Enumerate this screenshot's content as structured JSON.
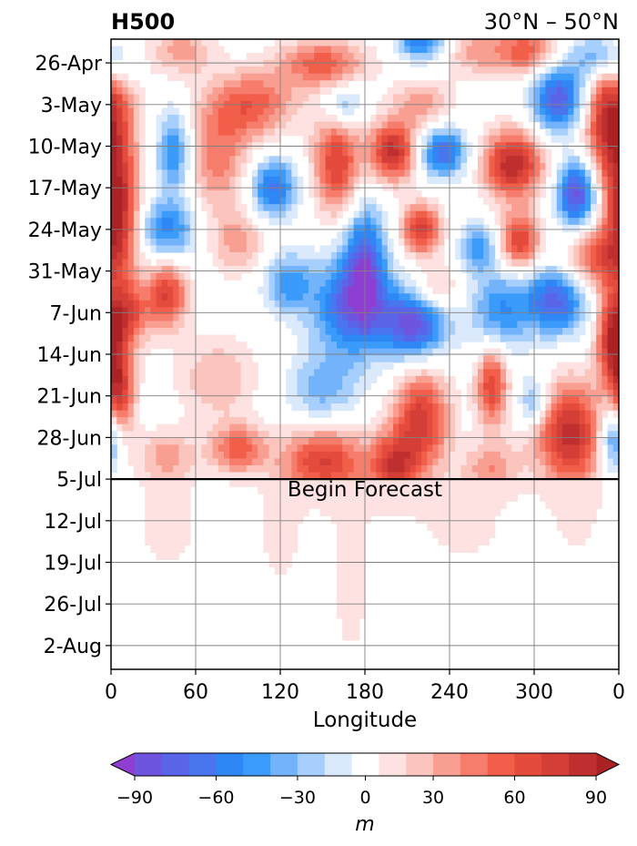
{
  "chart_data": {
    "type": "heatmap",
    "title_left": "H500",
    "title_right": "30°N – 50°N",
    "xlabel": "Longitude",
    "ylabel": "",
    "x_ticks": [
      "0",
      "60",
      "120",
      "180",
      "240",
      "300",
      "0"
    ],
    "x_range": [
      0,
      360
    ],
    "y_ticks": [
      "26-Apr",
      "3-May",
      "10-May",
      "17-May",
      "24-May",
      "31-May",
      "7-Jun",
      "14-Jun",
      "21-Jun",
      "28-Jun",
      "5-Jul",
      "12-Jul",
      "19-Jul",
      "26-Jul",
      "2-Aug"
    ],
    "y_range": [
      "2023-04-22",
      "2023-08-06"
    ],
    "grid": true,
    "forecast_start": "5-Jul",
    "forecast_label": "Begin Forecast",
    "colorbar": {
      "label": "m",
      "ticks": [
        "−90",
        "−60",
        "−30",
        "0",
        "30",
        "60",
        "90"
      ],
      "tick_values": [
        -90,
        -60,
        -30,
        0,
        30,
        60,
        90
      ],
      "levels": [
        -100,
        -90,
        -80,
        -70,
        -60,
        -50,
        -40,
        -30,
        -20,
        -10,
        10,
        20,
        30,
        40,
        50,
        60,
        70,
        80,
        90,
        100
      ],
      "extend": "both",
      "colors": [
        "#8e3fd1",
        "#6f55de",
        "#5a64e8",
        "#4976ef",
        "#2f87f5",
        "#3a9bfb",
        "#72b3fc",
        "#a6cffd",
        "#dbe9fd",
        "#ffffff",
        "#fde2e1",
        "#fbc4bc",
        "#f99f92",
        "#f67d6c",
        "#f15e49",
        "#e54b3c",
        "#d33e36",
        "#c02f2f",
        "#ab2224"
      ]
    },
    "anomaly_blobs": [
      {
        "lon": 5,
        "date": "2023-04-26",
        "v": -35,
        "sx": 10,
        "sy": 3
      },
      {
        "lon": 50,
        "date": "2023-04-24",
        "v": 35,
        "sx": 16,
        "sy": 3
      },
      {
        "lon": 100,
        "date": "2023-05-03",
        "v": 55,
        "sx": 22,
        "sy": 4
      },
      {
        "lon": 150,
        "date": "2023-04-26",
        "v": 55,
        "sx": 22,
        "sy": 3
      },
      {
        "lon": 220,
        "date": "2023-04-22",
        "v": -60,
        "sx": 12,
        "sy": 2.5
      },
      {
        "lon": 220,
        "date": "2023-05-03",
        "v": 35,
        "sx": 16,
        "sy": 3
      },
      {
        "lon": 165,
        "date": "2023-05-03",
        "v": -40,
        "sx": 10,
        "sy": 2.5
      },
      {
        "lon": 260,
        "date": "2023-04-24",
        "v": 35,
        "sx": 16,
        "sy": 3
      },
      {
        "lon": 295,
        "date": "2023-04-24",
        "v": 55,
        "sx": 14,
        "sy": 3
      },
      {
        "lon": 345,
        "date": "2023-04-25",
        "v": -55,
        "sx": 12,
        "sy": 3
      },
      {
        "lon": 318,
        "date": "2023-05-02",
        "v": -80,
        "sx": 14,
        "sy": 4
      },
      {
        "lon": 355,
        "date": "2023-05-05",
        "v": 95,
        "sx": 14,
        "sy": 8
      },
      {
        "lon": 5,
        "date": "2023-05-21",
        "v": 85,
        "sx": 10,
        "sy": 7
      },
      {
        "lon": 45,
        "date": "2023-05-11",
        "v": -55,
        "sx": 9,
        "sy": 5
      },
      {
        "lon": 75,
        "date": "2023-05-12",
        "v": 45,
        "sx": 16,
        "sy": 6
      },
      {
        "lon": 115,
        "date": "2023-05-17",
        "v": -65,
        "sx": 12,
        "sy": 3.5
      },
      {
        "lon": 160,
        "date": "2023-05-13",
        "v": 70,
        "sx": 12,
        "sy": 6
      },
      {
        "lon": 200,
        "date": "2023-05-11",
        "v": 85,
        "sx": 12,
        "sy": 3.5
      },
      {
        "lon": 235,
        "date": "2023-05-11",
        "v": -70,
        "sx": 12,
        "sy": 3
      },
      {
        "lon": 285,
        "date": "2023-05-13",
        "v": 90,
        "sx": 15,
        "sy": 4
      },
      {
        "lon": 330,
        "date": "2023-05-18",
        "v": -90,
        "sx": 10,
        "sy": 4
      },
      {
        "lon": 40,
        "date": "2023-05-24",
        "v": -55,
        "sx": 14,
        "sy": 3.5
      },
      {
        "lon": 90,
        "date": "2023-05-26",
        "v": 35,
        "sx": 14,
        "sy": 4
      },
      {
        "lon": 180,
        "date": "2023-05-29",
        "v": -65,
        "sx": 10,
        "sy": 7
      },
      {
        "lon": 220,
        "date": "2023-05-24",
        "v": 75,
        "sx": 10,
        "sy": 3
      },
      {
        "lon": 260,
        "date": "2023-05-27",
        "v": -45,
        "sx": 9,
        "sy": 3
      },
      {
        "lon": 290,
        "date": "2023-05-26",
        "v": 70,
        "sx": 10,
        "sy": 3.5
      },
      {
        "lon": 345,
        "date": "2023-05-29",
        "v": 60,
        "sx": 16,
        "sy": 4
      },
      {
        "lon": 10,
        "date": "2023-06-07",
        "v": 65,
        "sx": 12,
        "sy": 4
      },
      {
        "lon": 40,
        "date": "2023-06-04",
        "v": 70,
        "sx": 10,
        "sy": 4
      },
      {
        "lon": 125,
        "date": "2023-06-02",
        "v": -45,
        "sx": 12,
        "sy": 3.5
      },
      {
        "lon": 170,
        "date": "2023-06-06",
        "v": -70,
        "sx": 20,
        "sy": 6
      },
      {
        "lon": 215,
        "date": "2023-06-09",
        "v": -85,
        "sx": 16,
        "sy": 4
      },
      {
        "lon": 275,
        "date": "2023-06-07",
        "v": -50,
        "sx": 14,
        "sy": 5
      },
      {
        "lon": 315,
        "date": "2023-06-05",
        "v": -75,
        "sx": 16,
        "sy": 4
      },
      {
        "lon": 230,
        "date": "2023-06-03",
        "v": 30,
        "sx": 12,
        "sy": 3
      },
      {
        "lon": 5,
        "date": "2023-06-20",
        "v": 80,
        "sx": 8,
        "sy": 6
      },
      {
        "lon": 75,
        "date": "2023-06-18",
        "v": 30,
        "sx": 20,
        "sy": 5
      },
      {
        "lon": 150,
        "date": "2023-06-20",
        "v": -35,
        "sx": 18,
        "sy": 4
      },
      {
        "lon": 220,
        "date": "2023-06-25",
        "v": 75,
        "sx": 14,
        "sy": 6
      },
      {
        "lon": 270,
        "date": "2023-06-19",
        "v": 70,
        "sx": 8,
        "sy": 5
      },
      {
        "lon": 300,
        "date": "2023-06-22",
        "v": -45,
        "sx": 8,
        "sy": 3
      },
      {
        "lon": 325,
        "date": "2023-06-27",
        "v": 80,
        "sx": 18,
        "sy": 6
      },
      {
        "lon": 357,
        "date": "2023-06-28",
        "v": -70,
        "sx": 8,
        "sy": 4
      },
      {
        "lon": 355,
        "date": "2023-06-12",
        "v": 70,
        "sx": 8,
        "sy": 5
      },
      {
        "lon": 40,
        "date": "2023-07-01",
        "v": 30,
        "sx": 14,
        "sy": 3
      },
      {
        "lon": 90,
        "date": "2023-06-30",
        "v": 55,
        "sx": 14,
        "sy": 3
      },
      {
        "lon": 150,
        "date": "2023-07-02",
        "v": 70,
        "sx": 20,
        "sy": 4
      },
      {
        "lon": 200,
        "date": "2023-07-03",
        "v": 70,
        "sx": 12,
        "sy": 4
      },
      {
        "lon": 270,
        "date": "2023-07-03",
        "v": 35,
        "sx": 14,
        "sy": 3
      },
      {
        "lon": 40,
        "date": "2023-07-12",
        "v": 15,
        "sx": 18,
        "sy": 8
      },
      {
        "lon": 120,
        "date": "2023-07-14",
        "v": 15,
        "sx": 12,
        "sy": 8
      },
      {
        "lon": 170,
        "date": "2023-07-20",
        "v": 15,
        "sx": 12,
        "sy": 14
      },
      {
        "lon": 250,
        "date": "2023-07-12",
        "v": 15,
        "sx": 25,
        "sy": 6
      },
      {
        "lon": 330,
        "date": "2023-07-09",
        "v": 15,
        "sx": 12,
        "sy": 8
      }
    ]
  }
}
